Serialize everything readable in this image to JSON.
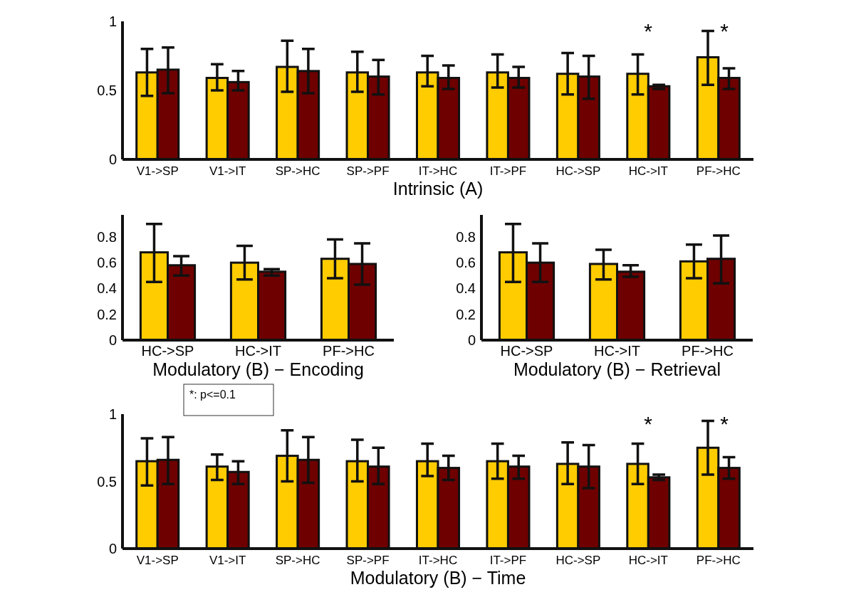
{
  "chart_data": [
    {
      "type": "bar",
      "xlabel": "Intrinsic (A)",
      "categories": [
        "V1->SP",
        "V1->IT",
        "SP->HC",
        "SP->PF",
        "IT->HC",
        "IT->PF",
        "HC->SP",
        "HC->IT",
        "PF->HC"
      ],
      "ylim": [
        0,
        1
      ],
      "yticks": [
        0,
        0.5,
        1
      ],
      "grid": false,
      "series": [
        {
          "color": "#ffcc00",
          "values": [
            0.63,
            0.59,
            0.67,
            0.63,
            0.63,
            0.63,
            0.62,
            0.62,
            0.74
          ],
          "errors": [
            [
              0.46,
              0.8
            ],
            [
              0.5,
              0.69
            ],
            [
              0.49,
              0.86
            ],
            [
              0.49,
              0.78
            ],
            [
              0.53,
              0.75
            ],
            [
              0.52,
              0.76
            ],
            [
              0.47,
              0.77
            ],
            [
              0.47,
              0.76
            ],
            [
              0.54,
              0.93
            ]
          ]
        },
        {
          "color": "#6e0000",
          "values": [
            0.65,
            0.56,
            0.64,
            0.6,
            0.59,
            0.59,
            0.6,
            0.53,
            0.59
          ],
          "errors": [
            [
              0.48,
              0.81
            ],
            [
              0.5,
              0.64
            ],
            [
              0.48,
              0.8
            ],
            [
              0.47,
              0.72
            ],
            [
              0.51,
              0.68
            ],
            [
              0.52,
              0.67
            ],
            [
              0.44,
              0.75
            ],
            [
              0.51,
              0.54
            ],
            [
              0.51,
              0.66
            ]
          ]
        }
      ],
      "annotations": [
        "*",
        "*"
      ]
    },
    {
      "type": "bar",
      "xlabel": "Modulatory (B) − Encoding",
      "categories": [
        "HC->SP",
        "HC->IT",
        "PF->HC"
      ],
      "ylim": [
        0,
        0.97
      ],
      "yticks": [
        0,
        0.2,
        0.4,
        0.6,
        0.8
      ],
      "grid": false,
      "series": [
        {
          "color": "#ffcc00",
          "values": [
            0.68,
            0.6,
            0.63
          ],
          "errors": [
            [
              0.45,
              0.9
            ],
            [
              0.47,
              0.73
            ],
            [
              0.48,
              0.78
            ]
          ]
        },
        {
          "color": "#6e0000",
          "values": [
            0.58,
            0.53,
            0.59
          ],
          "errors": [
            [
              0.5,
              0.65
            ],
            [
              0.5,
              0.55
            ],
            [
              0.43,
              0.75
            ]
          ]
        }
      ]
    },
    {
      "type": "bar",
      "xlabel": "Modulatory (B) − Retrieval",
      "categories": [
        "HC->SP",
        "HC->IT",
        "PF->HC"
      ],
      "ylim": [
        0,
        0.97
      ],
      "yticks": [
        0,
        0.2,
        0.4,
        0.6,
        0.8
      ],
      "grid": false,
      "series": [
        {
          "color": "#ffcc00",
          "values": [
            0.68,
            0.59,
            0.61
          ],
          "errors": [
            [
              0.45,
              0.9
            ],
            [
              0.47,
              0.7
            ],
            [
              0.48,
              0.74
            ]
          ]
        },
        {
          "color": "#6e0000",
          "values": [
            0.6,
            0.53,
            0.63
          ],
          "errors": [
            [
              0.45,
              0.75
            ],
            [
              0.49,
              0.58
            ],
            [
              0.44,
              0.81
            ]
          ]
        }
      ]
    },
    {
      "type": "bar",
      "xlabel": "Modulatory (B) − Time",
      "categories": [
        "V1->SP",
        "V1->IT",
        "SP->HC",
        "SP->PF",
        "IT->HC",
        "IT->PF",
        "HC->SP",
        "HC->IT",
        "PF->HC"
      ],
      "ylim": [
        0,
        1
      ],
      "yticks": [
        0,
        0.5,
        1
      ],
      "grid": false,
      "series": [
        {
          "color": "#ffcc00",
          "values": [
            0.65,
            0.61,
            0.69,
            0.65,
            0.65,
            0.65,
            0.63,
            0.63,
            0.75
          ],
          "errors": [
            [
              0.47,
              0.82
            ],
            [
              0.51,
              0.7
            ],
            [
              0.5,
              0.88
            ],
            [
              0.5,
              0.81
            ],
            [
              0.54,
              0.78
            ],
            [
              0.52,
              0.78
            ],
            [
              0.48,
              0.79
            ],
            [
              0.48,
              0.78
            ],
            [
              0.55,
              0.95
            ]
          ]
        },
        {
          "color": "#6e0000",
          "values": [
            0.66,
            0.57,
            0.66,
            0.61,
            0.6,
            0.61,
            0.61,
            0.53,
            0.6
          ],
          "errors": [
            [
              0.48,
              0.83
            ],
            [
              0.48,
              0.65
            ],
            [
              0.49,
              0.83
            ],
            [
              0.48,
              0.75
            ],
            [
              0.51,
              0.69
            ],
            [
              0.52,
              0.69
            ],
            [
              0.45,
              0.77
            ],
            [
              0.51,
              0.55
            ],
            [
              0.52,
              0.68
            ]
          ]
        }
      ],
      "annotations": [
        "*: p<=0.1",
        "*",
        "*"
      ]
    }
  ]
}
